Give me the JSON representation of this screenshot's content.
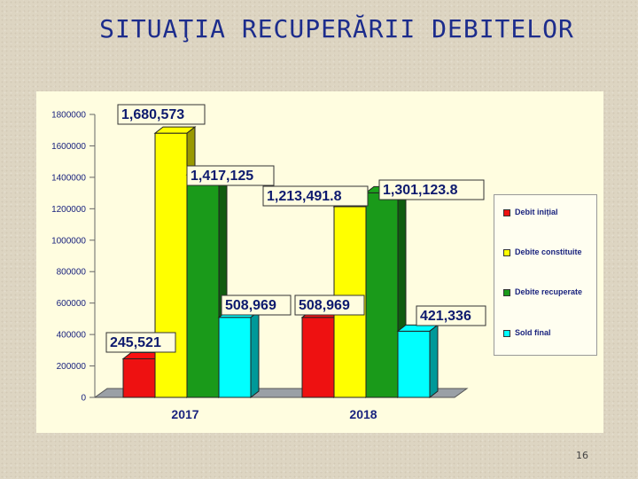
{
  "slide": {
    "title": "SITUAŢIA RECUPERĂRII DEBITELOR",
    "page_number": "16"
  },
  "chart_data": {
    "type": "bar",
    "title": "SITUAŢIA RECUPERĂRII DEBITELOR",
    "categories": [
      "2017",
      "2018"
    ],
    "series": [
      {
        "name": "Debit inițial",
        "color": "#ee1111",
        "values": [
          245521,
          508969
        ],
        "labels": [
          "245,521",
          "508,969"
        ]
      },
      {
        "name": "Debite constituite",
        "color": "#ffff00",
        "values": [
          1680573,
          1213491.8
        ],
        "labels": [
          "1,680,573",
          "1,213,491.8"
        ]
      },
      {
        "name": "Debite recuperate",
        "color": "#1a9a1a",
        "values": [
          1417125,
          1301123.8
        ],
        "labels": [
          "1,417,125",
          "1,301,123.8"
        ]
      },
      {
        "name": "Sold final",
        "color": "#00ffff",
        "values": [
          508969,
          421336
        ],
        "labels": [
          "508,969",
          "421,336"
        ]
      }
    ],
    "ylim": [
      0,
      1800000
    ],
    "yticks": [
      "0",
      "200000",
      "400000",
      "600000",
      "800000",
      "1000000",
      "1200000",
      "1400000",
      "1600000",
      "1800000"
    ],
    "legend_position": "right",
    "grid": false,
    "3d": true
  }
}
